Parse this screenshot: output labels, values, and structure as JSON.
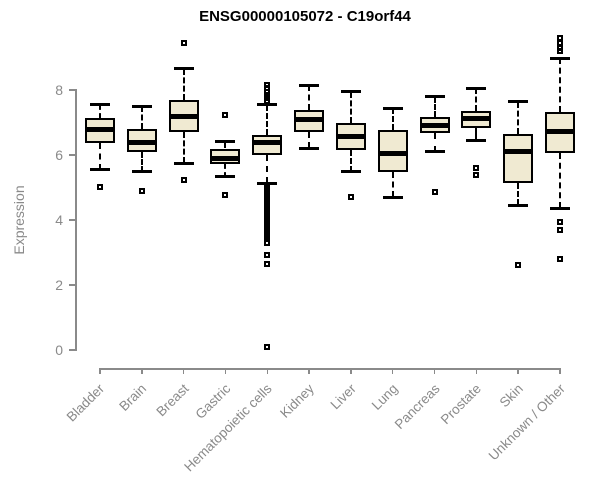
{
  "colors": {
    "box_fill": "#f0ead2",
    "box_border": "#000000",
    "median": "#000000",
    "axis": "#8a8a8a",
    "title": "#000000",
    "background": "#ffffff"
  },
  "chart_data": {
    "type": "boxplot",
    "title": "ENSG00000105072 - C19orf44",
    "xlabel": "",
    "ylabel": "Expression",
    "yticks": [
      0,
      2,
      4,
      6,
      8
    ],
    "ylim": [
      0,
      9.8
    ],
    "grid": false,
    "legend": "none",
    "categories": [
      "Bladder",
      "Brain",
      "Breast",
      "Gastric",
      "Hematopoietic cells",
      "Kidney",
      "Liver",
      "Lung",
      "Pancreas",
      "Prostate",
      "Skin",
      "Unknown / Other"
    ],
    "series": [
      {
        "name": "Bladder",
        "whisker_low": 5.54,
        "q1": 6.36,
        "median": 6.77,
        "q3": 7.15,
        "whisker_high": 7.54,
        "outliers": [
          5.03
        ]
      },
      {
        "name": "Brain",
        "whisker_low": 5.49,
        "q1": 6.1,
        "median": 6.39,
        "q3": 6.8,
        "whisker_high": 7.5,
        "outliers": [
          4.89
        ]
      },
      {
        "name": "Breast",
        "whisker_low": 5.75,
        "q1": 6.72,
        "median": 7.18,
        "q3": 7.7,
        "whisker_high": 8.65,
        "outliers": [
          9.46,
          5.23
        ]
      },
      {
        "name": "Gastric",
        "whisker_low": 5.33,
        "q1": 5.71,
        "median": 5.9,
        "q3": 6.2,
        "whisker_high": 6.41,
        "outliers": [
          7.23,
          4.77
        ]
      },
      {
        "name": "Hematopoietic cells",
        "whisker_low": 5.13,
        "q1": 6.0,
        "median": 6.39,
        "q3": 6.62,
        "whisker_high": 7.55,
        "outliers": [
          8.15,
          8.05,
          7.95,
          7.85,
          7.75,
          7.66,
          5.02,
          4.95,
          4.88,
          4.81,
          4.74,
          4.67,
          4.6,
          4.53,
          4.46,
          4.39,
          4.32,
          4.25,
          4.18,
          4.11,
          4.04,
          3.97,
          3.9,
          3.83,
          3.76,
          3.69,
          3.62,
          3.55,
          3.48,
          3.41,
          3.28,
          2.93,
          2.65,
          0.1
        ]
      },
      {
        "name": "Kidney",
        "whisker_low": 6.2,
        "q1": 6.72,
        "median": 7.08,
        "q3": 7.4,
        "whisker_high": 8.15,
        "outliers": []
      },
      {
        "name": "Liver",
        "whisker_low": 5.49,
        "q1": 6.15,
        "median": 6.56,
        "q3": 6.97,
        "whisker_high": 7.95,
        "outliers": [
          4.72
        ]
      },
      {
        "name": "Lung",
        "whisker_low": 4.7,
        "q1": 5.49,
        "median": 6.05,
        "q3": 6.77,
        "whisker_high": 7.44,
        "outliers": []
      },
      {
        "name": "Pancreas",
        "whisker_low": 6.1,
        "q1": 6.67,
        "median": 6.92,
        "q3": 7.18,
        "whisker_high": 7.79,
        "outliers": [
          4.85
        ]
      },
      {
        "name": "Prostate",
        "whisker_low": 6.46,
        "q1": 6.84,
        "median": 7.12,
        "q3": 7.35,
        "whisker_high": 8.05,
        "outliers": [
          5.6,
          5.38
        ]
      },
      {
        "name": "Skin",
        "whisker_low": 4.46,
        "q1": 5.15,
        "median": 6.11,
        "q3": 6.64,
        "whisker_high": 7.64,
        "outliers": [
          2.63
        ]
      },
      {
        "name": "Unknown / Other",
        "whisker_low": 4.36,
        "q1": 6.05,
        "median": 6.72,
        "q3": 7.33,
        "whisker_high": 8.97,
        "outliers": [
          9.6,
          9.45,
          9.3,
          9.2,
          3.95,
          3.7,
          2.8
        ]
      }
    ]
  }
}
